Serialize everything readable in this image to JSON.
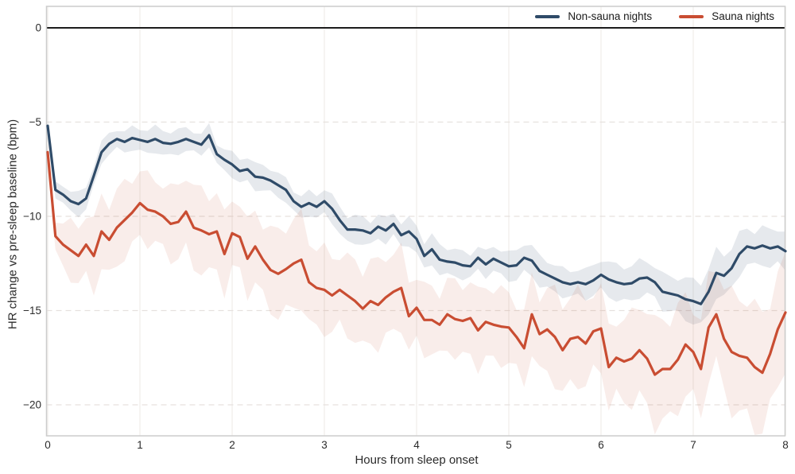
{
  "figure": {
    "xlabel": "Hours from sleep onset",
    "ylabel": "HR change vs pre-sleep baseline (bpm)"
  },
  "legend": {
    "entries": [
      {
        "label": "Non-sauna nights",
        "color": "#2f4b68"
      },
      {
        "label": "Sauna nights",
        "color": "#c94d32"
      }
    ]
  },
  "chart_data": {
    "type": "line",
    "title": "",
    "xlabel": "Hours from sleep onset",
    "ylabel": "HR change vs pre-sleep baseline (bpm)",
    "xlim": [
      0,
      8
    ],
    "ylim": [
      -21.7,
      1.15
    ],
    "xticks": [
      0,
      1,
      2,
      3,
      4,
      5,
      6,
      7,
      8
    ],
    "xtick_labels": [
      "0",
      "1",
      "2",
      "3",
      "4",
      "5",
      "6",
      "7",
      "8"
    ],
    "yticks": [
      0,
      -5,
      -10,
      -15,
      -20
    ],
    "ytick_labels": [
      "0",
      "−5",
      "−10",
      "−15",
      "−20"
    ],
    "grid": {
      "vertical": "solid",
      "horizontal": "dashed",
      "zero_line": true
    },
    "legend_position": "top-right",
    "x_start_hours": 0,
    "x_end_hours": 8,
    "n_points": 97,
    "series": [
      {
        "name": "Non-sauna nights",
        "color": "#2f4b68",
        "band_color": "rgba(47,75,104,0.12)",
        "values": [
          -5.2,
          -8.6,
          -8.85,
          -9.2,
          -9.35,
          -9.05,
          -7.85,
          -6.6,
          -6.15,
          -5.9,
          -6.05,
          -5.85,
          -5.95,
          -6.05,
          -5.9,
          -6.1,
          -6.15,
          -6.05,
          -5.9,
          -6.05,
          -6.2,
          -5.7,
          -6.7,
          -7.0,
          -7.25,
          -7.6,
          -7.5,
          -7.9,
          -7.95,
          -8.1,
          -8.35,
          -8.6,
          -9.2,
          -9.5,
          -9.3,
          -9.5,
          -9.2,
          -9.6,
          -10.2,
          -10.7,
          -10.7,
          -10.75,
          -10.9,
          -10.55,
          -10.75,
          -10.4,
          -11.0,
          -10.8,
          -11.2,
          -12.1,
          -11.75,
          -12.3,
          -12.4,
          -12.45,
          -12.6,
          -12.65,
          -12.2,
          -12.55,
          -12.25,
          -12.45,
          -12.65,
          -12.6,
          -12.2,
          -12.35,
          -12.9,
          -13.1,
          -13.3,
          -13.5,
          -13.6,
          -13.5,
          -13.6,
          -13.4,
          -13.1,
          -13.35,
          -13.5,
          -13.6,
          -13.55,
          -13.3,
          -13.25,
          -13.5,
          -14.0,
          -14.1,
          -14.2,
          -14.4,
          -14.5,
          -14.65,
          -14.0,
          -13.0,
          -13.15,
          -12.75,
          -12.0,
          -11.6,
          -11.7,
          -11.55,
          -11.7,
          -11.6,
          -11.85
        ],
        "band_halfwidth_controls": [
          [
            0,
            0.3
          ],
          [
            0.3,
            0.55
          ],
          [
            1,
            0.6
          ],
          [
            2,
            0.6
          ],
          [
            3,
            0.65
          ],
          [
            4,
            0.7
          ],
          [
            5,
            0.7
          ],
          [
            6,
            0.8
          ],
          [
            6.6,
            0.95
          ],
          [
            7.1,
            1.1
          ],
          [
            7.4,
            1.1
          ],
          [
            8,
            0.95
          ]
        ]
      },
      {
        "name": "Sauna nights",
        "color": "#c94d32",
        "band_color": "rgba(201,77,50,0.10)",
        "values": [
          -6.6,
          -11.05,
          -11.5,
          -11.8,
          -12.1,
          -11.5,
          -12.1,
          -10.8,
          -11.25,
          -10.6,
          -10.2,
          -9.8,
          -9.3,
          -9.65,
          -9.75,
          -10.0,
          -10.4,
          -10.3,
          -9.75,
          -10.6,
          -10.75,
          -10.95,
          -10.8,
          -12.0,
          -10.9,
          -11.1,
          -12.25,
          -11.6,
          -12.3,
          -12.85,
          -13.05,
          -12.8,
          -12.5,
          -12.3,
          -13.5,
          -13.8,
          -13.9,
          -14.2,
          -13.9,
          -14.2,
          -14.5,
          -14.9,
          -14.5,
          -14.7,
          -14.3,
          -14.0,
          -13.8,
          -15.3,
          -14.85,
          -15.5,
          -15.5,
          -15.75,
          -15.2,
          -15.45,
          -15.55,
          -15.4,
          -16.05,
          -15.6,
          -15.75,
          -15.85,
          -15.9,
          -16.4,
          -17.0,
          -15.2,
          -16.25,
          -16.0,
          -16.4,
          -17.1,
          -16.5,
          -16.4,
          -16.75,
          -16.1,
          -15.95,
          -18.0,
          -17.5,
          -17.7,
          -17.55,
          -17.1,
          -17.55,
          -18.4,
          -18.1,
          -18.1,
          -17.6,
          -16.8,
          -17.2,
          -18.1,
          -15.9,
          -15.2,
          -16.5,
          -17.2,
          -17.4,
          -17.5,
          -18.0,
          -18.3,
          -17.3,
          -16.0,
          -15.1
        ],
        "band_halfwidth_controls": [
          [
            0,
            0.5
          ],
          [
            0.2,
            1.5
          ],
          [
            0.5,
            1.75
          ],
          [
            1,
            1.85
          ],
          [
            2,
            2.0
          ],
          [
            3,
            2.2
          ],
          [
            4,
            1.9
          ],
          [
            4.7,
            1.8
          ],
          [
            5.5,
            2.2
          ],
          [
            6.3,
            2.3
          ],
          [
            7,
            2.7
          ],
          [
            7.6,
            2.9
          ],
          [
            8,
            3.0
          ]
        ]
      }
    ]
  }
}
